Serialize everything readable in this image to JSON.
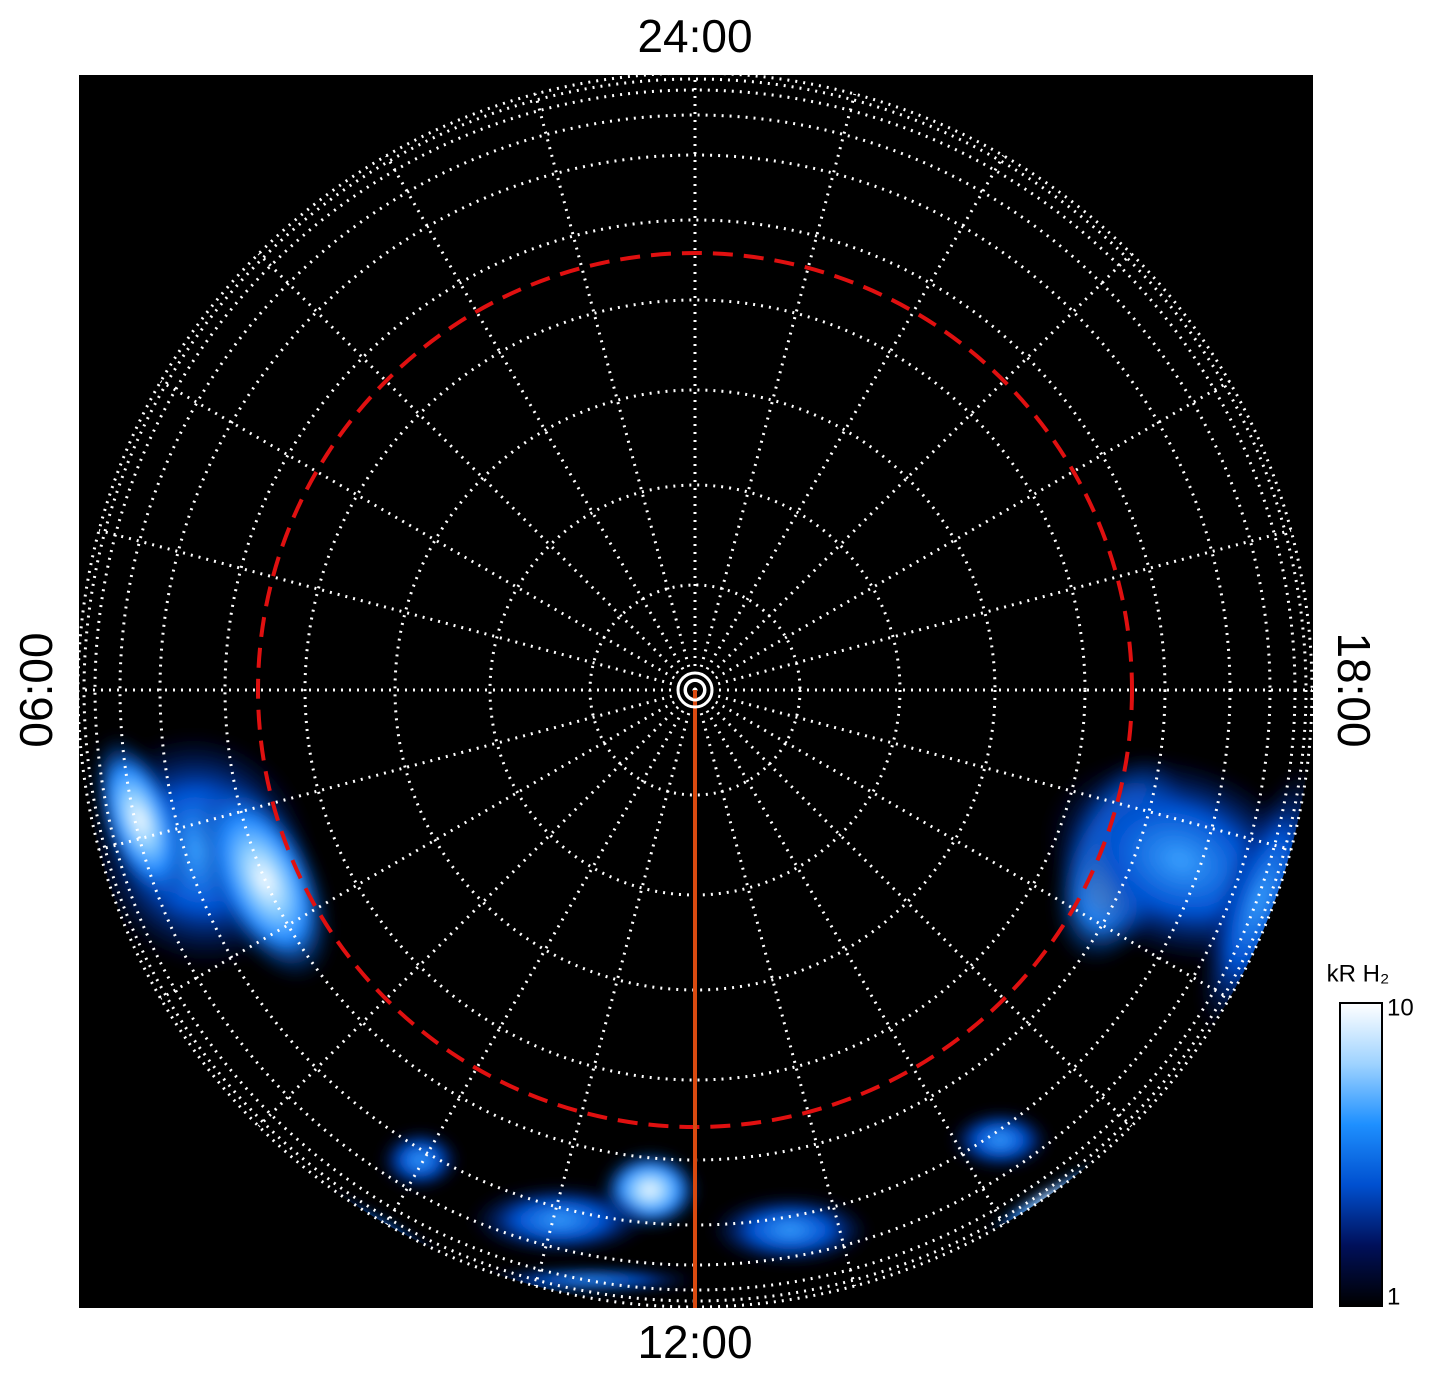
{
  "chart_data": {
    "type": "polar-image",
    "hour_labels": {
      "top": "24:00",
      "bottom": "12:00",
      "left": "06:00",
      "right": "18:00"
    },
    "colorbar": {
      "label": "kR H₂",
      "lim": [
        1,
        10
      ],
      "ticks": [
        1,
        10
      ],
      "log": true,
      "colors": [
        "#000000",
        "#00105a",
        "#0050d0",
        "#1e90ff",
        "#9fd3ff",
        "#ffffff"
      ]
    },
    "grid": true
  }
}
